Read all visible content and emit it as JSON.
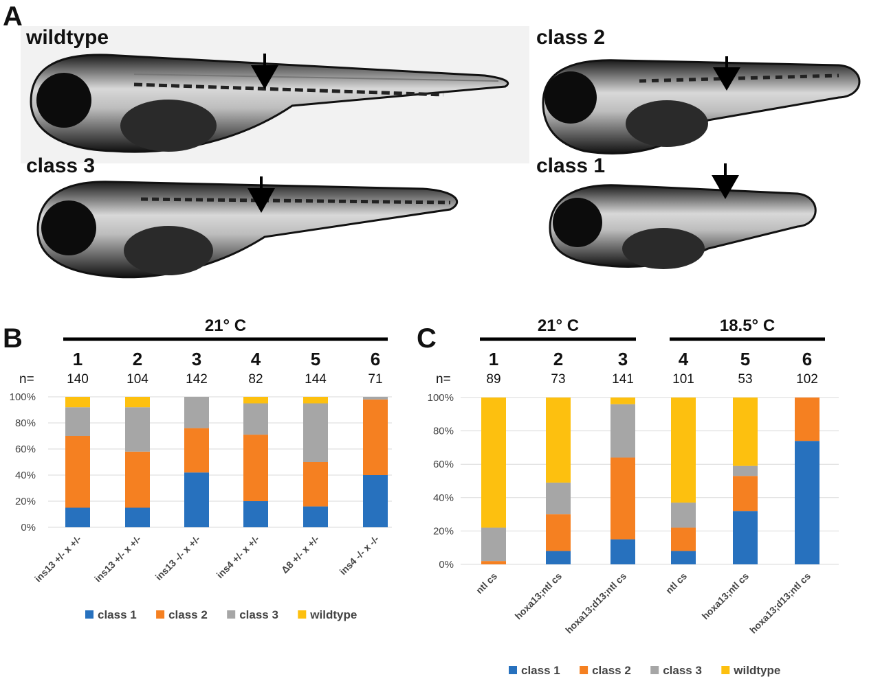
{
  "panel_a": {
    "letter": "A",
    "images": [
      {
        "id": "wildtype",
        "label": "wildtype"
      },
      {
        "id": "class2",
        "label": "class 2"
      },
      {
        "id": "class3",
        "label": "class 3"
      },
      {
        "id": "class1",
        "label": "class 1"
      }
    ]
  },
  "colors": {
    "class1": "#2771be",
    "class2": "#f58021",
    "class3": "#a6a6a6",
    "wildtype": "#fdc00f"
  },
  "chart_data": [
    {
      "panel": "B",
      "type": "bar",
      "stacked": true,
      "temperature_labels": [
        "21° C"
      ],
      "column_numbers": [
        "1",
        "2",
        "3",
        "4",
        "5",
        "6"
      ],
      "n_prefix": "n=",
      "n_values": [
        "140",
        "104",
        "142",
        "82",
        "144",
        "71"
      ],
      "categories": [
        "ins13 +/- x +/-",
        "ins13 +/- x +/-",
        "ins13 -/- x +/-",
        "ins4 +/- x +/-",
        "Δ8 +/- x +/-",
        "ins4 -/- x -/-"
      ],
      "yticks": [
        "0%",
        "20%",
        "40%",
        "60%",
        "80%",
        "100%"
      ],
      "ylim": [
        0,
        100
      ],
      "grid": true,
      "legend_position": "bottom",
      "series": [
        {
          "name": "class 1",
          "values": [
            15,
            15,
            42,
            20,
            16,
            40
          ]
        },
        {
          "name": "class 2",
          "values": [
            55,
            43,
            34,
            51,
            34,
            58
          ]
        },
        {
          "name": "class 3",
          "values": [
            22,
            34,
            24,
            24,
            45,
            2
          ]
        },
        {
          "name": "wildtype",
          "values": [
            8,
            8,
            0,
            5,
            5,
            0
          ]
        }
      ]
    },
    {
      "panel": "C",
      "type": "bar",
      "stacked": true,
      "temperature_labels": [
        "21° C",
        "18.5° C"
      ],
      "column_numbers": [
        "1",
        "2",
        "3",
        "4",
        "5",
        "6"
      ],
      "n_prefix": "n=",
      "n_values": [
        "89",
        "73",
        "141",
        "101",
        "53",
        "102"
      ],
      "categories": [
        "ntl cs",
        "hoxa13;ntl cs",
        "hoxa13;d13;ntl cs",
        "ntl cs",
        "hoxa13;ntl cs",
        "hoxa13;d13;ntl cs"
      ],
      "yticks": [
        "0%",
        "20%",
        "40%",
        "60%",
        "80%",
        "100%"
      ],
      "ylim": [
        0,
        100
      ],
      "grid": true,
      "legend_position": "bottom",
      "series": [
        {
          "name": "class 1",
          "values": [
            0,
            8,
            15,
            8,
            32,
            74
          ]
        },
        {
          "name": "class 2",
          "values": [
            2,
            22,
            49,
            14,
            21,
            26
          ]
        },
        {
          "name": "class 3",
          "values": [
            20,
            19,
            32,
            15,
            6,
            0
          ]
        },
        {
          "name": "wildtype",
          "values": [
            78,
            51,
            4,
            63,
            41,
            0
          ]
        }
      ]
    }
  ]
}
